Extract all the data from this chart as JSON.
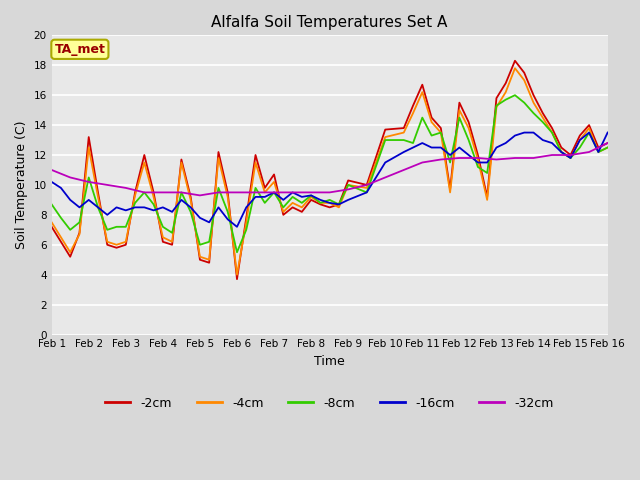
{
  "title": "Alfalfa Soil Temperatures Set A",
  "xlabel": "Time",
  "ylabel": "Soil Temperature (C)",
  "annotation": "TA_met",
  "ylim": [
    0,
    20
  ],
  "xlim": [
    0,
    15
  ],
  "x_ticks": [
    0,
    1,
    2,
    3,
    4,
    5,
    6,
    7,
    8,
    9,
    10,
    11,
    12,
    13,
    14,
    15
  ],
  "x_tick_labels": [
    "Feb 1",
    "Feb 2",
    "Feb 3",
    "Feb 4",
    "Feb 5",
    "Feb 6",
    "Feb 7",
    "Feb 8",
    "Feb 9",
    "Feb 10",
    "Feb 11",
    "Feb 12",
    "Feb 13",
    "Feb 14",
    "Feb 15",
    "Feb 16"
  ],
  "fig_bg_color": "#d8d8d8",
  "plot_bg_color": "#e8e8e8",
  "grid_color": "#ffffff",
  "series": {
    "-2cm": {
      "color": "#cc0000",
      "x": [
        0,
        0.25,
        0.5,
        0.75,
        1.0,
        1.25,
        1.5,
        1.75,
        2.0,
        2.25,
        2.5,
        2.75,
        3.0,
        3.25,
        3.5,
        3.75,
        4.0,
        4.25,
        4.5,
        4.75,
        5.0,
        5.25,
        5.5,
        5.75,
        6.0,
        6.25,
        6.5,
        6.75,
        7.0,
        7.25,
        7.5,
        7.75,
        8.0,
        8.5,
        9.0,
        9.5,
        9.75,
        10.0,
        10.25,
        10.5,
        10.75,
        11.0,
        11.25,
        11.5,
        11.75,
        12.0,
        12.25,
        12.5,
        12.75,
        13.0,
        13.25,
        13.5,
        13.75,
        14.0,
        14.25,
        14.5,
        14.75,
        15.0
      ],
      "y": [
        7.2,
        6.2,
        5.2,
        6.8,
        13.2,
        9.5,
        6.0,
        5.8,
        6.0,
        9.5,
        12.0,
        9.5,
        6.2,
        6.0,
        11.7,
        9.2,
        5.0,
        4.8,
        12.2,
        9.5,
        3.7,
        7.8,
        12.0,
        9.8,
        10.7,
        8.0,
        8.5,
        8.2,
        9.0,
        8.7,
        8.5,
        8.7,
        10.3,
        10.0,
        13.7,
        13.8,
        15.3,
        16.7,
        14.5,
        13.8,
        9.7,
        15.5,
        14.2,
        12.0,
        9.2,
        15.8,
        16.8,
        18.3,
        17.5,
        16.0,
        14.8,
        13.8,
        12.5,
        12.0,
        13.3,
        14.0,
        12.5,
        12.8
      ]
    },
    "-4cm": {
      "color": "#ff8800",
      "x": [
        0,
        0.25,
        0.5,
        0.75,
        1.0,
        1.25,
        1.5,
        1.75,
        2.0,
        2.25,
        2.5,
        2.75,
        3.0,
        3.25,
        3.5,
        3.75,
        4.0,
        4.25,
        4.5,
        4.75,
        5.0,
        5.25,
        5.5,
        5.75,
        6.0,
        6.25,
        6.5,
        6.75,
        7.0,
        7.25,
        7.5,
        7.75,
        8.0,
        8.5,
        9.0,
        9.5,
        9.75,
        10.0,
        10.25,
        10.5,
        10.75,
        11.0,
        11.25,
        11.5,
        11.75,
        12.0,
        12.25,
        12.5,
        12.75,
        13.0,
        13.25,
        13.5,
        13.75,
        14.0,
        14.25,
        14.5,
        14.75,
        15.0
      ],
      "y": [
        7.5,
        6.5,
        5.5,
        6.7,
        12.5,
        9.2,
        6.2,
        6.0,
        6.2,
        9.3,
        11.5,
        9.2,
        6.5,
        6.2,
        11.5,
        9.0,
        5.2,
        5.0,
        11.8,
        9.2,
        4.0,
        7.5,
        11.5,
        9.5,
        10.2,
        8.2,
        8.8,
        8.5,
        9.2,
        8.8,
        8.8,
        8.5,
        10.0,
        9.8,
        13.2,
        13.5,
        14.8,
        16.2,
        14.2,
        13.5,
        9.5,
        15.0,
        13.8,
        11.7,
        9.0,
        15.2,
        16.2,
        17.8,
        17.0,
        15.5,
        14.5,
        13.5,
        12.2,
        11.8,
        13.0,
        13.8,
        12.2,
        12.5
      ]
    },
    "-8cm": {
      "color": "#33cc00",
      "x": [
        0,
        0.25,
        0.5,
        0.75,
        1.0,
        1.25,
        1.5,
        1.75,
        2.0,
        2.25,
        2.5,
        2.75,
        3.0,
        3.25,
        3.5,
        3.75,
        4.0,
        4.25,
        4.5,
        4.75,
        5.0,
        5.25,
        5.5,
        5.75,
        6.0,
        6.25,
        6.5,
        6.75,
        7.0,
        7.25,
        7.5,
        7.75,
        8.0,
        8.5,
        9.0,
        9.5,
        9.75,
        10.0,
        10.25,
        10.5,
        10.75,
        11.0,
        11.25,
        11.5,
        11.75,
        12.0,
        12.25,
        12.5,
        12.75,
        13.0,
        13.25,
        13.5,
        13.75,
        14.0,
        14.25,
        14.5,
        14.75,
        15.0
      ],
      "y": [
        8.7,
        7.8,
        7.0,
        7.5,
        10.5,
        8.5,
        7.0,
        7.2,
        7.2,
        8.8,
        9.5,
        8.7,
        7.2,
        6.8,
        9.5,
        8.2,
        6.0,
        6.2,
        9.8,
        8.2,
        5.5,
        7.0,
        9.8,
        8.8,
        9.5,
        8.5,
        9.2,
        8.8,
        9.3,
        8.8,
        9.0,
        8.7,
        10.0,
        9.5,
        13.0,
        13.0,
        12.8,
        14.5,
        13.3,
        13.5,
        11.5,
        14.5,
        13.0,
        11.2,
        10.8,
        15.3,
        15.7,
        16.0,
        15.5,
        14.8,
        14.2,
        13.5,
        12.2,
        11.8,
        12.5,
        13.5,
        12.2,
        12.5
      ]
    },
    "-16cm": {
      "color": "#0000cc",
      "x": [
        0,
        0.25,
        0.5,
        0.75,
        1.0,
        1.25,
        1.5,
        1.75,
        2.0,
        2.25,
        2.5,
        2.75,
        3.0,
        3.25,
        3.5,
        3.75,
        4.0,
        4.25,
        4.5,
        4.75,
        5.0,
        5.25,
        5.5,
        5.75,
        6.0,
        6.25,
        6.5,
        6.75,
        7.0,
        7.25,
        7.5,
        7.75,
        8.0,
        8.5,
        9.0,
        9.5,
        9.75,
        10.0,
        10.25,
        10.5,
        10.75,
        11.0,
        11.25,
        11.5,
        11.75,
        12.0,
        12.25,
        12.5,
        12.75,
        13.0,
        13.25,
        13.5,
        13.75,
        14.0,
        14.25,
        14.5,
        14.75,
        15.0
      ],
      "y": [
        10.2,
        9.8,
        9.0,
        8.5,
        9.0,
        8.5,
        8.0,
        8.5,
        8.3,
        8.5,
        8.5,
        8.3,
        8.5,
        8.2,
        9.0,
        8.5,
        7.8,
        7.5,
        8.5,
        7.7,
        7.2,
        8.5,
        9.2,
        9.2,
        9.5,
        9.0,
        9.5,
        9.2,
        9.3,
        9.0,
        8.8,
        8.7,
        9.0,
        9.5,
        11.5,
        12.2,
        12.5,
        12.8,
        12.5,
        12.5,
        12.0,
        12.5,
        12.0,
        11.5,
        11.5,
        12.5,
        12.8,
        13.3,
        13.5,
        13.5,
        13.0,
        12.8,
        12.2,
        11.8,
        13.0,
        13.5,
        12.2,
        13.5
      ]
    },
    "-32cm": {
      "color": "#bb00bb",
      "x": [
        0,
        0.5,
        1.0,
        1.5,
        2.0,
        2.5,
        3.0,
        3.5,
        4.0,
        4.5,
        5.0,
        5.5,
        6.0,
        6.5,
        7.0,
        7.5,
        8.0,
        8.5,
        9.0,
        9.5,
        10.0,
        10.5,
        11.0,
        11.5,
        12.0,
        12.5,
        13.0,
        13.5,
        14.0,
        14.5,
        15.0
      ],
      "y": [
        11.0,
        10.5,
        10.2,
        10.0,
        9.8,
        9.5,
        9.5,
        9.5,
        9.3,
        9.5,
        9.5,
        9.5,
        9.5,
        9.5,
        9.5,
        9.5,
        9.7,
        10.0,
        10.5,
        11.0,
        11.5,
        11.7,
        11.8,
        11.8,
        11.7,
        11.8,
        11.8,
        12.0,
        12.0,
        12.2,
        12.8
      ]
    }
  },
  "legend_entries": [
    "-2cm",
    "-4cm",
    "-8cm",
    "-16cm",
    "-32cm"
  ],
  "legend_colors": [
    "#cc0000",
    "#ff8800",
    "#33cc00",
    "#0000cc",
    "#bb00bb"
  ],
  "title_fontsize": 11,
  "axis_label_fontsize": 9,
  "tick_fontsize": 7.5,
  "legend_fontsize": 9
}
